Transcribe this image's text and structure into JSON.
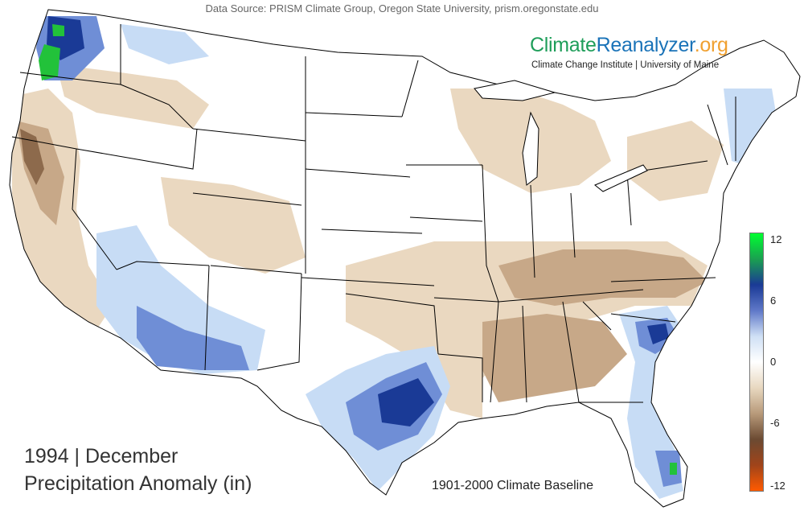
{
  "header": {
    "source": "Data Source: PRISM Climate Group, Oregon State University, prism.oregonstate.edu"
  },
  "brand": {
    "part1": "Climate",
    "part2": "Reanalyzer",
    "part3": ".org",
    "subtitle": "Climate Change Institute | University of Maine",
    "colors": {
      "climate": "#1f9e5a",
      "reanalyzer": "#1a73b8",
      "org": "#f0a030"
    }
  },
  "title": {
    "line1": "1994 | December",
    "line2": "Precipitation Anomaly (in)"
  },
  "baseline": "1901-2000 Climate Baseline",
  "legend": {
    "ticks": [
      "12",
      "6",
      "0",
      "-6",
      "-12"
    ],
    "stops": [
      "#00ff30",
      "#1aa050",
      "#1a3a96",
      "#5f78c8",
      "#cfe0f5",
      "#ffffff",
      "#e8d8c0",
      "#b89a7a",
      "#6b4a32",
      "#a0441a",
      "#ff5a00"
    ]
  },
  "map": {
    "palette": {
      "wet_extreme": "#22c23a",
      "wet_strong": "#1a3a96",
      "wet_moderate": "#6f8ed6",
      "wet_light": "#c7dcf5",
      "neutral": "#ffffff",
      "dry_light": "#ead8c0",
      "dry_moderate": "#cbb091",
      "dry_strong": "#8d6a4c"
    }
  }
}
